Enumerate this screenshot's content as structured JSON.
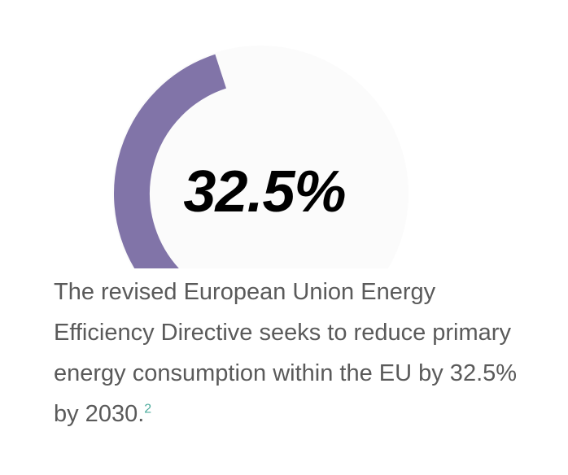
{
  "chart_data": {
    "type": "gauge",
    "value": 32.5,
    "value_label": "32.5%",
    "range": [
      0,
      100
    ],
    "arc_color": "#8174a8",
    "track_color": "#fbfbfb"
  },
  "caption": {
    "text": "The revised European Union Energy Efficiency Directive seeks to reduce primary energy consumption within the EU by 32.5% by 2030.",
    "footnote": "2",
    "footnote_color": "#4cab9c"
  }
}
